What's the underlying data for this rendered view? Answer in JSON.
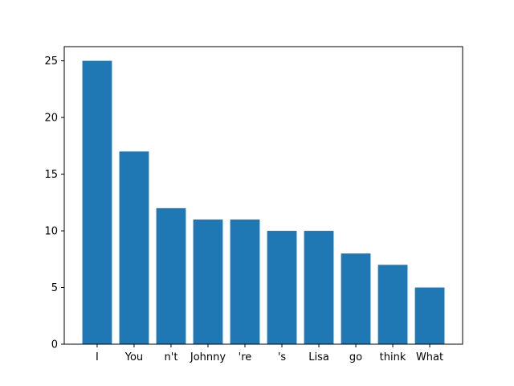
{
  "chart_data": {
    "type": "bar",
    "title": "",
    "xlabel": "",
    "ylabel": "",
    "categories": [
      "I",
      "You",
      "n't",
      "Johnny",
      "'re",
      "'s",
      "Lisa",
      "go",
      "think",
      "What"
    ],
    "values": [
      25,
      17,
      12,
      11,
      11,
      10,
      10,
      8,
      7,
      5
    ],
    "ylim": [
      0,
      26.25
    ],
    "yticks": [
      0,
      5,
      10,
      15,
      20,
      25
    ],
    "grid": false,
    "legend": "none",
    "bar_color": "#1f77b4"
  }
}
